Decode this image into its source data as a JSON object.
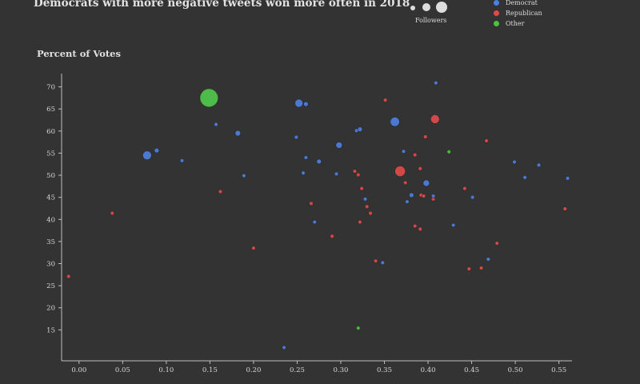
{
  "title": "Democrats with more negative tweets won more often in 2018",
  "legend": {
    "size_label": "Followers",
    "items": [
      {
        "label": "Democrat",
        "color": "#4d7fe0"
      },
      {
        "label": "Republican",
        "color": "#e04a4a"
      },
      {
        "label": "Other",
        "color": "#4ec240"
      }
    ]
  },
  "chart_data": {
    "type": "scatter",
    "title": "Democrats with more negative tweets won more often in 2018",
    "xlabel": "",
    "ylabel": "Percent of Votes",
    "xlim": [
      -0.02,
      0.565
    ],
    "ylim": [
      8,
      73
    ],
    "x_ticks": [
      "0.00",
      "0.05",
      "0.10",
      "0.15",
      "0.20",
      "0.25",
      "0.30",
      "0.35",
      "0.40",
      "0.45",
      "0.50",
      "0.55"
    ],
    "y_ticks": [
      "15",
      "20",
      "25",
      "30",
      "35",
      "40",
      "45",
      "50",
      "55",
      "60",
      "65",
      "70"
    ],
    "grid": false,
    "legend_position": "top-right",
    "size_variable": "Followers",
    "series": [
      {
        "name": "Democrat",
        "color": "#4d7fe0",
        "points": [
          {
            "x": 0.149,
            "y": 67.5,
            "s": 4
          },
          {
            "x": 0.157,
            "y": 61.5,
            "s": 1
          },
          {
            "x": 0.182,
            "y": 59.5,
            "s": 1.4
          },
          {
            "x": 0.078,
            "y": 54.5,
            "s": 2.2
          },
          {
            "x": 0.089,
            "y": 55.6,
            "s": 1.2
          },
          {
            "x": 0.118,
            "y": 53.3,
            "s": 1
          },
          {
            "x": 0.189,
            "y": 49.9,
            "s": 1
          },
          {
            "x": 0.252,
            "y": 66.3,
            "s": 2
          },
          {
            "x": 0.26,
            "y": 66.1,
            "s": 1.2
          },
          {
            "x": 0.409,
            "y": 70.9,
            "s": 1
          },
          {
            "x": 0.362,
            "y": 62.1,
            "s": 2.3
          },
          {
            "x": 0.249,
            "y": 58.6,
            "s": 1
          },
          {
            "x": 0.318,
            "y": 60.1,
            "s": 1
          },
          {
            "x": 0.322,
            "y": 60.4,
            "s": 1.2
          },
          {
            "x": 0.298,
            "y": 56.8,
            "s": 1.6
          },
          {
            "x": 0.26,
            "y": 54.0,
            "s": 1
          },
          {
            "x": 0.275,
            "y": 53.1,
            "s": 1.2
          },
          {
            "x": 0.257,
            "y": 50.5,
            "s": 1
          },
          {
            "x": 0.295,
            "y": 50.3,
            "s": 1
          },
          {
            "x": 0.372,
            "y": 55.4,
            "s": 1
          },
          {
            "x": 0.398,
            "y": 48.2,
            "s": 1.6
          },
          {
            "x": 0.381,
            "y": 45.5,
            "s": 1.2
          },
          {
            "x": 0.406,
            "y": 45.3,
            "s": 1
          },
          {
            "x": 0.451,
            "y": 45.0,
            "s": 1
          },
          {
            "x": 0.376,
            "y": 44.0,
            "s": 1
          },
          {
            "x": 0.328,
            "y": 44.6,
            "s": 1
          },
          {
            "x": 0.499,
            "y": 53.0,
            "s": 1
          },
          {
            "x": 0.527,
            "y": 52.3,
            "s": 1
          },
          {
            "x": 0.511,
            "y": 49.5,
            "s": 1
          },
          {
            "x": 0.56,
            "y": 49.3,
            "s": 1
          },
          {
            "x": 0.27,
            "y": 39.4,
            "s": 1
          },
          {
            "x": 0.429,
            "y": 38.7,
            "s": 1
          },
          {
            "x": 0.348,
            "y": 30.2,
            "s": 1
          },
          {
            "x": 0.469,
            "y": 31.0,
            "s": 1
          },
          {
            "x": 0.235,
            "y": 11.0,
            "s": 1
          }
        ]
      },
      {
        "name": "Republican",
        "color": "#e04a4a",
        "points": [
          {
            "x": 0.351,
            "y": 67.0,
            "s": 1
          },
          {
            "x": 0.408,
            "y": 62.7,
            "s": 2.2
          },
          {
            "x": 0.397,
            "y": 58.7,
            "s": 1
          },
          {
            "x": 0.467,
            "y": 57.8,
            "s": 1
          },
          {
            "x": 0.385,
            "y": 54.6,
            "s": 1
          },
          {
            "x": 0.368,
            "y": 50.9,
            "s": 2.6
          },
          {
            "x": 0.391,
            "y": 51.5,
            "s": 1
          },
          {
            "x": 0.316,
            "y": 50.9,
            "s": 1
          },
          {
            "x": 0.32,
            "y": 50.1,
            "s": 1
          },
          {
            "x": 0.374,
            "y": 48.3,
            "s": 1
          },
          {
            "x": 0.324,
            "y": 47.0,
            "s": 1
          },
          {
            "x": 0.442,
            "y": 47.0,
            "s": 1
          },
          {
            "x": 0.392,
            "y": 45.5,
            "s": 1
          },
          {
            "x": 0.395,
            "y": 45.3,
            "s": 1
          },
          {
            "x": 0.406,
            "y": 44.6,
            "s": 1
          },
          {
            "x": 0.162,
            "y": 46.3,
            "s": 1
          },
          {
            "x": 0.266,
            "y": 43.6,
            "s": 1
          },
          {
            "x": 0.33,
            "y": 42.9,
            "s": 1
          },
          {
            "x": 0.334,
            "y": 41.4,
            "s": 1
          },
          {
            "x": 0.038,
            "y": 41.4,
            "s": 1
          },
          {
            "x": 0.557,
            "y": 42.4,
            "s": 1
          },
          {
            "x": 0.322,
            "y": 39.4,
            "s": 1
          },
          {
            "x": 0.385,
            "y": 38.5,
            "s": 1
          },
          {
            "x": 0.391,
            "y": 37.8,
            "s": 1
          },
          {
            "x": 0.29,
            "y": 36.2,
            "s": 1
          },
          {
            "x": 0.479,
            "y": 34.6,
            "s": 1
          },
          {
            "x": 0.2,
            "y": 33.5,
            "s": 1
          },
          {
            "x": 0.34,
            "y": 30.6,
            "s": 1
          },
          {
            "x": 0.447,
            "y": 28.8,
            "s": 1
          },
          {
            "x": 0.461,
            "y": 29.0,
            "s": 1
          },
          {
            "x": -0.012,
            "y": 27.1,
            "s": 1
          }
        ]
      },
      {
        "name": "Other",
        "color": "#4ec240",
        "points": [
          {
            "x": 0.149,
            "y": 67.5,
            "s": 4.5
          },
          {
            "x": 0.424,
            "y": 55.3,
            "s": 1
          },
          {
            "x": 0.32,
            "y": 15.4,
            "s": 1
          }
        ]
      }
    ]
  }
}
